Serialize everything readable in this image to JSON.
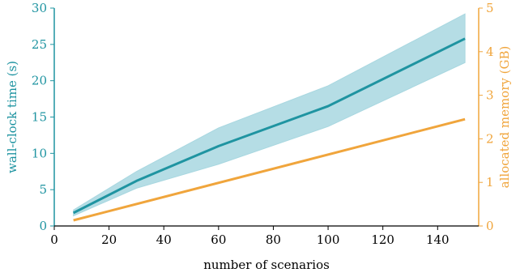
{
  "chart_data": {
    "type": "line",
    "title": "",
    "xlabel": "number of scenarios",
    "ylabel_left": "wall-clock time (s)",
    "ylabel_right": "allocated memory (GB)",
    "xlim": [
      0,
      155
    ],
    "ylim_left": [
      0,
      30
    ],
    "ylim_right": [
      0,
      5
    ],
    "x_ticks": [
      "0",
      "20",
      "40",
      "60",
      "80",
      "100",
      "120",
      "140"
    ],
    "y_ticks_left": [
      "0",
      "5",
      "10",
      "15",
      "20",
      "25",
      "30"
    ],
    "y_ticks_right": [
      "0",
      "1",
      "2",
      "3",
      "4",
      "5"
    ],
    "grid": false,
    "colors": {
      "time": "#1f94a1",
      "band": "#a8d7e0",
      "memory": "#f0a53c",
      "axis_left": "#1f94a1",
      "axis_right": "#f0a53c",
      "x_axis": "#000000"
    },
    "series": [
      {
        "axis": "left",
        "x": [
          7,
          30,
          60,
          100,
          150
        ],
        "y": [
          1.8,
          6.2,
          11,
          16.5,
          25.8
        ],
        "band_lower": [
          1.4,
          5.2,
          8.5,
          13.7,
          22.5
        ],
        "band_upper": [
          2.2,
          7.5,
          13.5,
          19.3,
          29.2
        ]
      },
      {
        "axis": "right",
        "x": [
          7,
          150
        ],
        "y": [
          0.13,
          2.45
        ]
      }
    ]
  }
}
